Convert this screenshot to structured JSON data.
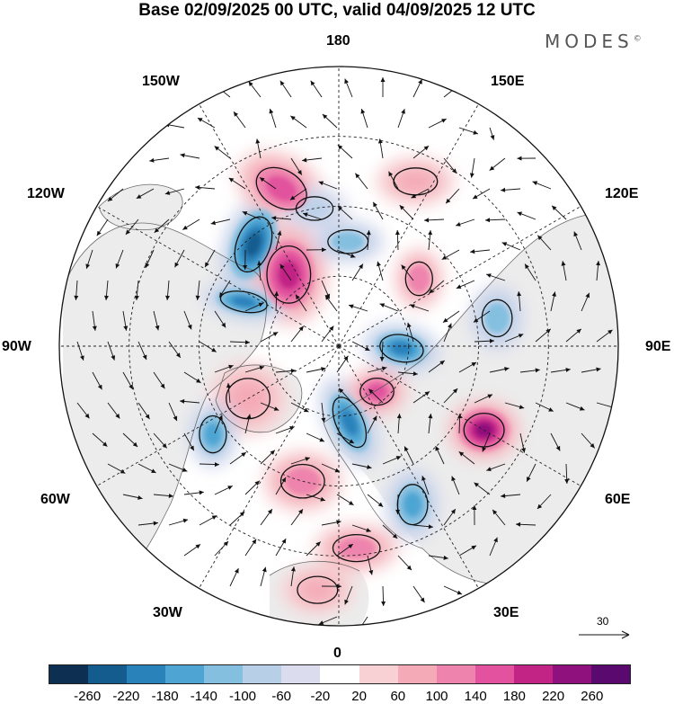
{
  "title": "Base 02/09/2025 00 UTC, valid 04/09/2025 12 UTC",
  "brand": {
    "name": "MODES",
    "mark": "©"
  },
  "longitude_labels": {
    "lon_180": "180",
    "lon_150e": "150E",
    "lon_120e": "120E",
    "lon_90e": "90E",
    "lon_60e": "60E",
    "lon_30e": "30E",
    "lon_0": "0",
    "lon_30w": "30W",
    "lon_60w": "60W",
    "lon_90w": "90W",
    "lon_120w": "120W",
    "lon_150w": "150W"
  },
  "reference_vector": {
    "label": "30"
  },
  "anomaly_blobs": [
    {
      "name": "alaska-negative",
      "lon": -140,
      "colat": 38,
      "value": -230,
      "ax": 1.0,
      "ay": 1.7,
      "rot": 20
    },
    {
      "name": "nwcanada-positive",
      "lon": -145,
      "colat": 25,
      "value": 200,
      "ax": 1.3,
      "ay": 1.7,
      "rot": 0
    },
    {
      "name": "canada-positive",
      "lon": -160,
      "colat": 48,
      "value": 170,
      "ax": 1.6,
      "ay": 1.1,
      "rot": 30
    },
    {
      "name": "hudson-negative",
      "lon": -115,
      "colat": 30,
      "value": -200,
      "ax": 1.4,
      "ay": 0.6,
      "rot": 10
    },
    {
      "name": "greenland-positive",
      "lon": -60,
      "colat": 30,
      "value": 90,
      "ax": 1.3,
      "ay": 1.2,
      "rot": 0
    },
    {
      "name": "labrador-negative",
      "lon": -55,
      "colat": 44,
      "value": -140,
      "ax": 0.8,
      "ay": 1.1,
      "rot": 0
    },
    {
      "name": "norway-negative",
      "lon": 8,
      "colat": 22,
      "value": -190,
      "ax": 0.8,
      "ay": 1.6,
      "rot": -25
    },
    {
      "name": "scandinavia-positive",
      "lon": 40,
      "colat": 17,
      "value": 160,
      "ax": 1.0,
      "ay": 0.8,
      "rot": 0
    },
    {
      "name": "siberia-negative",
      "lon": 88,
      "colat": 18,
      "value": -200,
      "ax": 1.3,
      "ay": 0.8,
      "rot": 10
    },
    {
      "name": "central-asia-positive",
      "lon": 60,
      "colat": 48,
      "value": 220,
      "ax": 1.2,
      "ay": 1.0,
      "rot": 0
    },
    {
      "name": "mongolia-negative",
      "lon": 100,
      "colat": 46,
      "value": -130,
      "ax": 0.9,
      "ay": 1.1,
      "rot": 0
    },
    {
      "name": "mediterranean-negative",
      "lon": 25,
      "colat": 50,
      "value": -150,
      "ax": 0.9,
      "ay": 1.2,
      "rot": 0
    },
    {
      "name": "kamchatka-negative",
      "lon": 175,
      "colat": 30,
      "value": -110,
      "ax": 1.2,
      "ay": 0.7,
      "rot": 0
    },
    {
      "name": "pacific-positive",
      "lon": 155,
      "colat": 52,
      "value": 90,
      "ax": 1.3,
      "ay": 0.8,
      "rot": 0
    },
    {
      "name": "east-siberia-positive",
      "lon": 130,
      "colat": 30,
      "value": 110,
      "ax": 0.8,
      "ay": 1.0,
      "rot": 0
    },
    {
      "name": "atlantic-positive",
      "lon": -15,
      "colat": 40,
      "value": 110,
      "ax": 1.3,
      "ay": 1.0,
      "rot": 0
    },
    {
      "name": "europe-positive",
      "lon": 5,
      "colat": 58,
      "value": 100,
      "ax": 1.4,
      "ay": 0.8,
      "rot": 0
    },
    {
      "name": "north-pacific-negative",
      "lon": -170,
      "colat": 40,
      "value": -90,
      "ax": 1.1,
      "ay": 0.7,
      "rot": 0
    },
    {
      "name": "africa-positive",
      "lon": -5,
      "colat": 70,
      "value": 80,
      "ax": 1.2,
      "ay": 0.8,
      "rot": 0
    }
  ],
  "colorbar": {
    "ticks": [
      "-260",
      "-220",
      "-180",
      "-140",
      "-100",
      "-60",
      "-20",
      "20",
      "60",
      "100",
      "140",
      "180",
      "220",
      "260"
    ],
    "colors": [
      "#0d2f52",
      "#155c8e",
      "#2a82bb",
      "#4ea5d3",
      "#84bfe0",
      "#b7cfe7",
      "#dbdcee",
      "#ffffff",
      "#f7d1d3",
      "#f4aab7",
      "#ee84ad",
      "#e2529e",
      "#c22486",
      "#8e117d",
      "#5a0a6e"
    ]
  }
}
